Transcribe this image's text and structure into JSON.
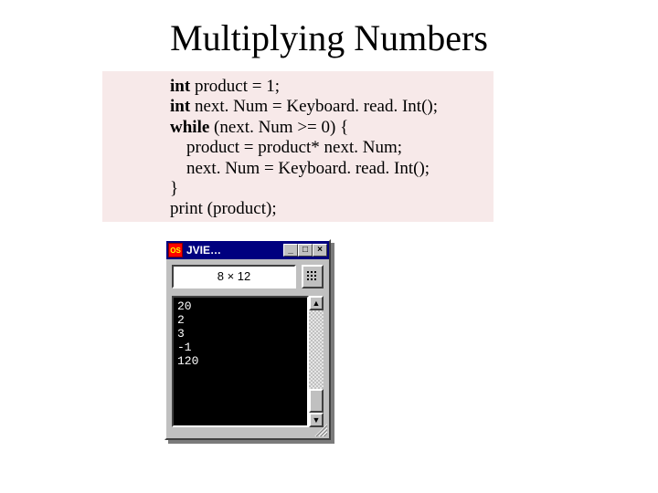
{
  "title": "Multiplying Numbers",
  "code": {
    "l1a": "int ",
    "l1b": "product = 1;",
    "l2a": "int ",
    "l2b": "next. Num = Keyboard. read. Int();",
    "l3a": "while ",
    "l3b": "(next. Num >= 0) {",
    "l4": "product = product* next. Num;",
    "l5": "next. Num = Keyboard. read. Int();",
    "l6": "}",
    "l7": "print (product);"
  },
  "jvie": {
    "sysicon_text": "OS",
    "title": "JVIE…",
    "btn_min": "_",
    "btn_max": "□",
    "btn_close": "×",
    "input_value": "8 × 12",
    "arrow_up": "▲",
    "arrow_down": "▼",
    "console": {
      "l1": "20",
      "l2": "2",
      "l3": "3",
      "l4": "-1",
      "l5": "120"
    }
  }
}
